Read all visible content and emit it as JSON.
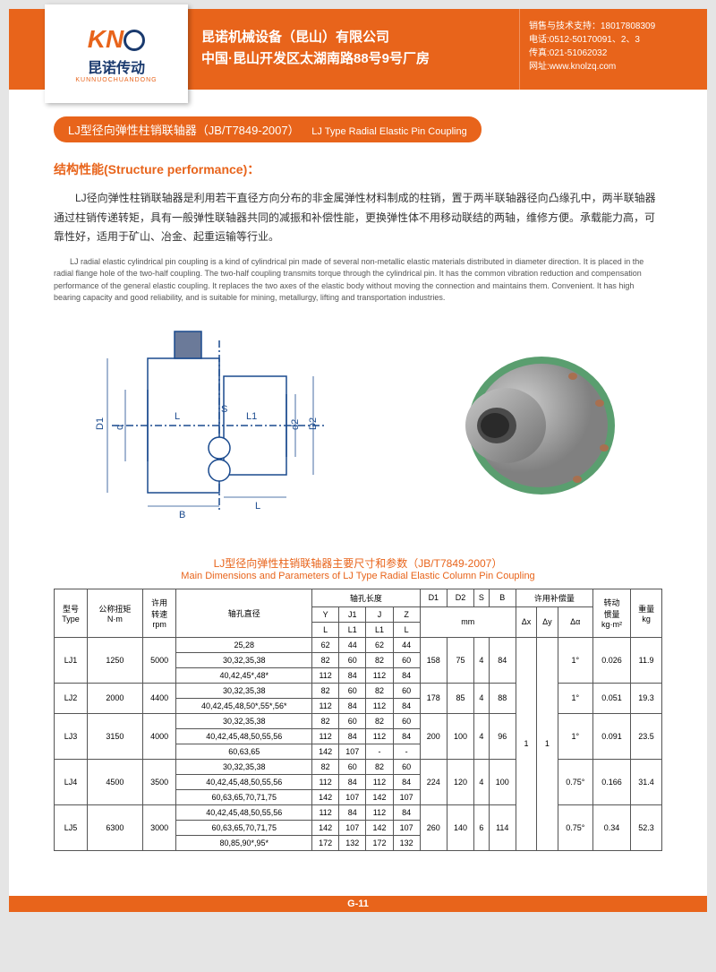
{
  "header": {
    "company_cn": "昆诺机械设备（昆山）有限公司",
    "address_cn": "中国·昆山开发区太湖南路88号9号厂房",
    "contact1": "销售与技术支持：18017808309",
    "contact2": "电话:0512-50170091、2、3",
    "contact3": "传真:021-51062032",
    "contact4": "网址:www.knolzq.com",
    "logo_text": "KN",
    "logo_cn": "昆诺传动",
    "logo_py": "KUNNUOCHUANDONG"
  },
  "title": {
    "cn": "LJ型径向弹性柱销联轴器（JB/T7849-2007）",
    "en": "LJ Type Radial Elastic Pin Coupling"
  },
  "structure": {
    "heading": "结构性能(Structure performance)：",
    "para_cn": "LJ径向弹性柱销联轴器是利用若干直径方向分布的非金属弹性材料制成的柱销，置于两半联轴器径向凸缘孔中，两半联轴器通过柱销传递转矩，具有一般弹性联轴器共同的减振和补偿性能，更换弹性体不用移动联结的两轴，维修方便。承载能力高，可靠性好，适用于矿山、冶金、起重运输等行业。",
    "para_en": "LJ radial elastic cylindrical pin coupling is a kind of cylindrical pin made of several non-metallic elastic materials distributed in diameter direction. It is placed in the radial flange hole of the two-half coupling. The two-half coupling transmits torque through the cylindrical pin. It has the common vibration reduction and compensation performance of the general elastic coupling. It replaces the two axes of the elastic body without moving the connection and maintains them. Convenient. It has high bearing capacity and good reliability, and is suitable for mining, metallurgy, lifting and transportation industries."
  },
  "diagram": {
    "labels": {
      "D1": "D1",
      "d": "d",
      "L": "L",
      "S": "S",
      "L1": "L1",
      "d2": "d2",
      "D2": "D2",
      "B": "B",
      "L2": "L"
    },
    "stroke": "#1a4a8e",
    "fill": "#fff"
  },
  "table": {
    "title_cn": "LJ型径向弹性柱销联轴器主要尺寸和参数（JB/T7849-2007）",
    "title_en": "Main Dimensions and Parameters of LJ Type Radial Elastic Column Pin Coupling",
    "headers": {
      "type": "型号\nType",
      "torque": "公称扭矩\nN·m",
      "speed": "许用\n转速\nrpm",
      "bore": "轴孔直径",
      "bore_len": "轴孔长度",
      "Y": "Y",
      "J1": "J1",
      "J": "J",
      "Z": "Z",
      "L": "L",
      "L1": "L1",
      "D1": "D1",
      "D2": "D2",
      "S": "S",
      "B": "B",
      "comp": "许用补偿量",
      "dx": "Δx",
      "dy": "Δy",
      "da": "Δα",
      "inertia": "转动\n惯量\nkg·m²",
      "weight": "重量\nkg",
      "mm": "mm"
    },
    "rows": [
      {
        "type": "LJ1",
        "torque": "1250",
        "speed": "5000",
        "bores": [
          {
            "d": "25,28",
            "y": "62",
            "j1": "44",
            "j": "62",
            "z": "44"
          },
          {
            "d": "30,32,35,38",
            "y": "82",
            "j1": "60",
            "j": "82",
            "z": "60"
          },
          {
            "d": "40,42,45*,48*",
            "y": "112",
            "j1": "84",
            "j": "112",
            "z": "84"
          }
        ],
        "d1": "158",
        "d2": "75",
        "s": "4",
        "b": "84",
        "da": "1°",
        "inertia": "0.026",
        "weight": "11.9"
      },
      {
        "type": "LJ2",
        "torque": "2000",
        "speed": "4400",
        "bores": [
          {
            "d": "30,32,35,38",
            "y": "82",
            "j1": "60",
            "j": "82",
            "z": "60"
          },
          {
            "d": "40,42,45,48,50*,55*,56*",
            "y": "112",
            "j1": "84",
            "j": "112",
            "z": "84"
          }
        ],
        "d1": "178",
        "d2": "85",
        "s": "4",
        "b": "88",
        "da": "1°",
        "inertia": "0.051",
        "weight": "19.3"
      },
      {
        "type": "LJ3",
        "torque": "3150",
        "speed": "4000",
        "bores": [
          {
            "d": "30,32,35,38",
            "y": "82",
            "j1": "60",
            "j": "82",
            "z": "60"
          },
          {
            "d": "40,42,45,48,50,55,56",
            "y": "112",
            "j1": "84",
            "j": "112",
            "z": "84"
          },
          {
            "d": "60,63,65",
            "y": "142",
            "j1": "107",
            "j": "-",
            "z": "-"
          }
        ],
        "d1": "200",
        "d2": "100",
        "s": "4",
        "b": "96",
        "da": "1°",
        "inertia": "0.091",
        "weight": "23.5"
      },
      {
        "type": "LJ4",
        "torque": "4500",
        "speed": "3500",
        "bores": [
          {
            "d": "30,32,35,38",
            "y": "82",
            "j1": "60",
            "j": "82",
            "z": "60"
          },
          {
            "d": "40,42,45,48,50,55,56",
            "y": "112",
            "j1": "84",
            "j": "112",
            "z": "84"
          },
          {
            "d": "60,63,65,70,71,75",
            "y": "142",
            "j1": "107",
            "j": "142",
            "z": "107"
          }
        ],
        "d1": "224",
        "d2": "120",
        "s": "4",
        "b": "100",
        "da": "0.75°",
        "inertia": "0.166",
        "weight": "31.4"
      },
      {
        "type": "LJ5",
        "torque": "6300",
        "speed": "3000",
        "bores": [
          {
            "d": "40,42,45,48,50,55,56",
            "y": "112",
            "j1": "84",
            "j": "112",
            "z": "84"
          },
          {
            "d": "60,63,65,70,71,75",
            "y": "142",
            "j1": "107",
            "j": "142",
            "z": "107"
          },
          {
            "d": "80,85,90*,95*",
            "y": "172",
            "j1": "132",
            "j": "172",
            "z": "132"
          }
        ],
        "d1": "260",
        "d2": "140",
        "s": "6",
        "b": "114",
        "da": "0.75°",
        "inertia": "0.34",
        "weight": "52.3"
      }
    ],
    "dx": "1",
    "dy": "1"
  },
  "footer": "G-11"
}
